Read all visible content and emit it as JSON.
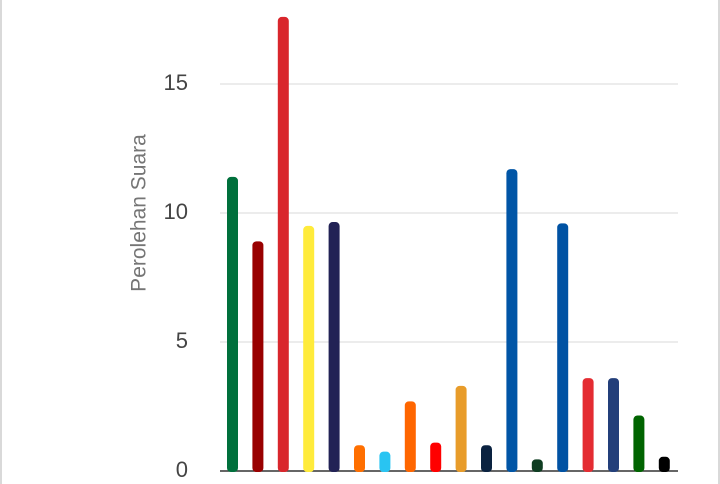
{
  "chart_data": {
    "type": "bar",
    "title": "",
    "xlabel": "",
    "ylabel": "Perolehan Suara",
    "ylim": [
      0,
      18
    ],
    "yticks": [
      0,
      5,
      10,
      15
    ],
    "grid": true,
    "legend": "none",
    "values": [
      11.4,
      8.9,
      17.6,
      9.5,
      9.65,
      1.0,
      0.75,
      2.7,
      1.1,
      3.3,
      1.0,
      11.7,
      0.45,
      9.6,
      3.6,
      3.6,
      2.15,
      0.55
    ],
    "colors": [
      "#00703C",
      "#990000",
      "#D9262C",
      "#FFEB3B",
      "#222255",
      "#FF6F00",
      "#29C4F2",
      "#FF6600",
      "#FF0000",
      "#E89C2A",
      "#0A2240",
      "#0055A6",
      "#0F3D22",
      "#0052A3",
      "#E42C32",
      "#233F7A",
      "#006400",
      "#000000"
    ]
  }
}
